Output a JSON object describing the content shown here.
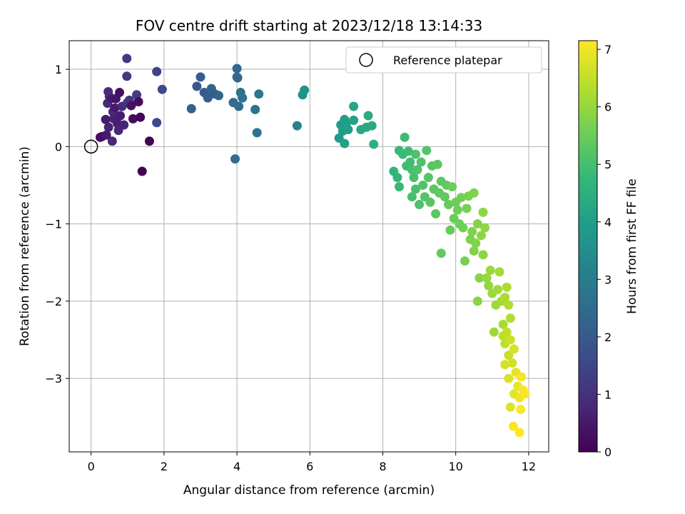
{
  "chart_data": {
    "type": "scatter",
    "title": "FOV centre drift starting at 2023/12/18 13:14:33",
    "xlabel": "Angular distance from reference (arcmin)",
    "ylabel": "Rotation from reference (arcmin)",
    "xlim": [
      -0.6,
      12.55
    ],
    "ylim": [
      -3.95,
      1.37
    ],
    "xticks": [
      0,
      2,
      4,
      6,
      8,
      10,
      12
    ],
    "yticks": [
      1,
      0,
      -1,
      -2,
      -3
    ],
    "xtick_labels": [
      "0",
      "2",
      "4",
      "6",
      "8",
      "10",
      "12"
    ],
    "ytick_labels": [
      "1",
      "0",
      "−1",
      "−2",
      "−3"
    ],
    "grid": true,
    "legend": {
      "position": "top-right",
      "label": "Reference platepar"
    },
    "reference_point": {
      "x": 0,
      "y": 0,
      "marker": "hollow-circle"
    },
    "colorbar": {
      "label": "Hours from first FF file",
      "colormap": "viridis",
      "range": [
        0,
        7.15
      ],
      "ticks": [
        0,
        1,
        2,
        3,
        4,
        5,
        6,
        7
      ],
      "tick_labels": [
        "0",
        "1",
        "2",
        "3",
        "4",
        "5",
        "6",
        "7"
      ]
    },
    "colors": {
      "viridis": [
        "#440154",
        "#482878",
        "#3e4989",
        "#31688e",
        "#26828e",
        "#1f9e89",
        "#35b779",
        "#6ece58",
        "#b5de2b",
        "#fde725"
      ]
    },
    "points": [
      {
        "x": 0.3,
        "y": 0.13,
        "t": 0.3
      },
      {
        "x": 0.4,
        "y": 0.35,
        "t": 0.5
      },
      {
        "x": 0.45,
        "y": 0.56,
        "t": 0.8
      },
      {
        "x": 0.47,
        "y": 0.71,
        "t": 0.9
      },
      {
        "x": 0.5,
        "y": 0.65,
        "t": 1.0
      },
      {
        "x": 0.48,
        "y": 0.25,
        "t": 0.7
      },
      {
        "x": 0.55,
        "y": 0.62,
        "t": 0.6
      },
      {
        "x": 0.6,
        "y": 0.45,
        "t": 0.9
      },
      {
        "x": 0.58,
        "y": 0.07,
        "t": 0.8
      },
      {
        "x": 0.62,
        "y": 0.36,
        "t": 0.7
      },
      {
        "x": 0.65,
        "y": 0.5,
        "t": 0.5
      },
      {
        "x": 0.68,
        "y": 0.62,
        "t": 0.4
      },
      {
        "x": 0.72,
        "y": 0.3,
        "t": 0.6
      },
      {
        "x": 0.75,
        "y": 0.21,
        "t": 0.8
      },
      {
        "x": 0.78,
        "y": 0.7,
        "t": 0.3
      },
      {
        "x": 0.8,
        "y": 0.4,
        "t": 0.6
      },
      {
        "x": 0.85,
        "y": 0.52,
        "t": 0.9
      },
      {
        "x": 0.9,
        "y": 0.28,
        "t": 0.7
      },
      {
        "x": 0.98,
        "y": 1.14,
        "t": 1.2
      },
      {
        "x": 0.98,
        "y": 0.91,
        "t": 1.2
      },
      {
        "x": 1.0,
        "y": 0.57,
        "t": 1.0
      },
      {
        "x": 1.05,
        "y": 0.6,
        "t": 1.1
      },
      {
        "x": 1.1,
        "y": 0.53,
        "t": 0.3
      },
      {
        "x": 1.15,
        "y": 0.36,
        "t": 0.2
      },
      {
        "x": 1.25,
        "y": 0.67,
        "t": 1.3
      },
      {
        "x": 1.3,
        "y": 0.58,
        "t": 0.2
      },
      {
        "x": 1.35,
        "y": 0.38,
        "t": 0.1
      },
      {
        "x": 1.4,
        "y": -0.32,
        "t": 0.0
      },
      {
        "x": 1.6,
        "y": 0.07,
        "t": 0.05
      },
      {
        "x": 1.8,
        "y": 0.97,
        "t": 1.4
      },
      {
        "x": 1.8,
        "y": 0.31,
        "t": 1.6
      },
      {
        "x": 1.95,
        "y": 0.74,
        "t": 1.6
      },
      {
        "x": 0.25,
        "y": 0.12,
        "t": 0.3
      },
      {
        "x": 0.42,
        "y": 0.15,
        "t": 0.5
      },
      {
        "x": 2.75,
        "y": 0.49,
        "t": 2.2
      },
      {
        "x": 2.9,
        "y": 0.78,
        "t": 2.0
      },
      {
        "x": 3.0,
        "y": 0.9,
        "t": 2.1
      },
      {
        "x": 3.1,
        "y": 0.7,
        "t": 2.0
      },
      {
        "x": 3.2,
        "y": 0.63,
        "t": 2.2
      },
      {
        "x": 3.25,
        "y": 0.67,
        "t": 2.1
      },
      {
        "x": 3.3,
        "y": 0.75,
        "t": 2.3
      },
      {
        "x": 3.4,
        "y": 0.68,
        "t": 2.1
      },
      {
        "x": 3.5,
        "y": 0.66,
        "t": 2.3
      },
      {
        "x": 3.9,
        "y": 0.57,
        "t": 2.5
      },
      {
        "x": 3.95,
        "y": -0.16,
        "t": 2.5
      },
      {
        "x": 4.0,
        "y": 1.01,
        "t": 2.4
      },
      {
        "x": 4.0,
        "y": 0.9,
        "t": 2.4
      },
      {
        "x": 4.02,
        "y": 0.89,
        "t": 2.4
      },
      {
        "x": 4.05,
        "y": 0.52,
        "t": 2.5
      },
      {
        "x": 4.1,
        "y": 0.7,
        "t": 2.6
      },
      {
        "x": 4.15,
        "y": 0.63,
        "t": 2.7
      },
      {
        "x": 4.5,
        "y": 0.48,
        "t": 2.7
      },
      {
        "x": 4.55,
        "y": 0.18,
        "t": 2.8
      },
      {
        "x": 4.6,
        "y": 0.68,
        "t": 2.8
      },
      {
        "x": 5.65,
        "y": 0.27,
        "t": 3.2
      },
      {
        "x": 5.8,
        "y": 0.67,
        "t": 3.6
      },
      {
        "x": 5.85,
        "y": 0.73,
        "t": 3.7
      },
      {
        "x": 6.8,
        "y": 0.11,
        "t": 3.9
      },
      {
        "x": 6.85,
        "y": 0.28,
        "t": 3.95
      },
      {
        "x": 6.9,
        "y": 0.2,
        "t": 4.0
      },
      {
        "x": 6.95,
        "y": 0.35,
        "t": 4.0
      },
      {
        "x": 6.95,
        "y": 0.04,
        "t": 4.1
      },
      {
        "x": 7.0,
        "y": 0.3,
        "t": 4.0
      },
      {
        "x": 7.05,
        "y": 0.22,
        "t": 4.05
      },
      {
        "x": 7.2,
        "y": 0.34,
        "t": 4.1
      },
      {
        "x": 7.2,
        "y": 0.52,
        "t": 4.2
      },
      {
        "x": 7.4,
        "y": 0.22,
        "t": 4.3
      },
      {
        "x": 7.55,
        "y": 0.25,
        "t": 4.3
      },
      {
        "x": 7.6,
        "y": 0.4,
        "t": 4.4
      },
      {
        "x": 7.7,
        "y": 0.27,
        "t": 4.4
      },
      {
        "x": 7.75,
        "y": 0.03,
        "t": 4.5
      },
      {
        "x": 8.3,
        "y": -0.32,
        "t": 4.7
      },
      {
        "x": 8.4,
        "y": -0.4,
        "t": 4.7
      },
      {
        "x": 8.45,
        "y": -0.05,
        "t": 4.8
      },
      {
        "x": 8.45,
        "y": -0.52,
        "t": 4.8
      },
      {
        "x": 8.55,
        "y": -0.1,
        "t": 4.85
      },
      {
        "x": 8.6,
        "y": 0.12,
        "t": 4.9
      },
      {
        "x": 8.65,
        "y": -0.25,
        "t": 4.9
      },
      {
        "x": 8.7,
        "y": -0.06,
        "t": 4.9
      },
      {
        "x": 8.75,
        "y": -0.2,
        "t": 4.95
      },
      {
        "x": 8.8,
        "y": -0.65,
        "t": 5.0
      },
      {
        "x": 8.8,
        "y": -0.3,
        "t": 5.0
      },
      {
        "x": 8.85,
        "y": -0.4,
        "t": 5.05
      },
      {
        "x": 8.9,
        "y": -0.55,
        "t": 5.05
      },
      {
        "x": 8.9,
        "y": -0.1,
        "t": 5.1
      },
      {
        "x": 8.95,
        "y": -0.3,
        "t": 5.1
      },
      {
        "x": 9.0,
        "y": -0.75,
        "t": 5.1
      },
      {
        "x": 9.05,
        "y": -0.2,
        "t": 5.15
      },
      {
        "x": 9.1,
        "y": -0.5,
        "t": 5.15
      },
      {
        "x": 9.15,
        "y": -0.65,
        "t": 5.2
      },
      {
        "x": 9.2,
        "y": -0.05,
        "t": 5.2
      },
      {
        "x": 9.25,
        "y": -0.4,
        "t": 5.2
      },
      {
        "x": 9.3,
        "y": -0.72,
        "t": 5.25
      },
      {
        "x": 9.35,
        "y": -0.25,
        "t": 5.25
      },
      {
        "x": 9.4,
        "y": -0.55,
        "t": 5.3
      },
      {
        "x": 9.45,
        "y": -0.87,
        "t": 5.3
      },
      {
        "x": 9.5,
        "y": -0.23,
        "t": 5.3
      },
      {
        "x": 9.55,
        "y": -0.6,
        "t": 5.35
      },
      {
        "x": 9.6,
        "y": -0.45,
        "t": 5.35
      },
      {
        "x": 9.6,
        "y": -1.38,
        "t": 5.4
      },
      {
        "x": 9.7,
        "y": -0.65,
        "t": 5.4
      },
      {
        "x": 9.75,
        "y": -0.5,
        "t": 5.4
      },
      {
        "x": 9.8,
        "y": -0.75,
        "t": 5.45
      },
      {
        "x": 9.85,
        "y": -1.08,
        "t": 5.45
      },
      {
        "x": 9.9,
        "y": -0.52,
        "t": 5.5
      },
      {
        "x": 9.95,
        "y": -0.93,
        "t": 5.5
      },
      {
        "x": 10.0,
        "y": -0.72,
        "t": 5.55
      },
      {
        "x": 10.05,
        "y": -0.82,
        "t": 5.55
      },
      {
        "x": 10.1,
        "y": -1.0,
        "t": 5.55
      },
      {
        "x": 10.15,
        "y": -0.66,
        "t": 5.6
      },
      {
        "x": 10.2,
        "y": -1.05,
        "t": 5.6
      },
      {
        "x": 10.25,
        "y": -1.48,
        "t": 5.65
      },
      {
        "x": 10.3,
        "y": -0.8,
        "t": 5.65
      },
      {
        "x": 10.35,
        "y": -0.64,
        "t": 5.7
      },
      {
        "x": 10.4,
        "y": -1.2,
        "t": 5.7
      },
      {
        "x": 10.45,
        "y": -1.1,
        "t": 5.75
      },
      {
        "x": 10.5,
        "y": -1.35,
        "t": 5.75
      },
      {
        "x": 10.5,
        "y": -0.6,
        "t": 5.75
      },
      {
        "x": 10.55,
        "y": -1.25,
        "t": 5.8
      },
      {
        "x": 10.6,
        "y": -1.0,
        "t": 5.8
      },
      {
        "x": 10.6,
        "y": -2.0,
        "t": 5.85
      },
      {
        "x": 10.65,
        "y": -1.7,
        "t": 5.85
      },
      {
        "x": 10.7,
        "y": -1.15,
        "t": 5.9
      },
      {
        "x": 10.75,
        "y": -1.4,
        "t": 5.9
      },
      {
        "x": 10.75,
        "y": -0.85,
        "t": 5.9
      },
      {
        "x": 10.8,
        "y": -1.05,
        "t": 5.95
      },
      {
        "x": 10.85,
        "y": -1.7,
        "t": 6.0
      },
      {
        "x": 10.9,
        "y": -1.8,
        "t": 6.0
      },
      {
        "x": 10.95,
        "y": -1.6,
        "t": 6.05
      },
      {
        "x": 11.0,
        "y": -1.9,
        "t": 6.05
      },
      {
        "x": 11.05,
        "y": -2.4,
        "t": 6.1
      },
      {
        "x": 11.1,
        "y": -2.05,
        "t": 6.1
      },
      {
        "x": 11.15,
        "y": -1.85,
        "t": 6.15
      },
      {
        "x": 11.2,
        "y": -1.62,
        "t": 6.15
      },
      {
        "x": 11.25,
        "y": -2.0,
        "t": 6.2
      },
      {
        "x": 11.3,
        "y": -2.3,
        "t": 6.2
      },
      {
        "x": 11.35,
        "y": -1.95,
        "t": 6.25
      },
      {
        "x": 11.4,
        "y": -1.82,
        "t": 6.25
      },
      {
        "x": 11.45,
        "y": -2.05,
        "t": 6.3
      },
      {
        "x": 11.5,
        "y": -2.22,
        "t": 6.3
      },
      {
        "x": 11.3,
        "y": -2.45,
        "t": 6.4
      },
      {
        "x": 11.35,
        "y": -2.55,
        "t": 6.45
      },
      {
        "x": 11.4,
        "y": -2.4,
        "t": 6.5
      },
      {
        "x": 11.45,
        "y": -2.7,
        "t": 6.55
      },
      {
        "x": 11.5,
        "y": -2.5,
        "t": 6.6
      },
      {
        "x": 11.55,
        "y": -2.8,
        "t": 6.65
      },
      {
        "x": 11.6,
        "y": -2.62,
        "t": 6.7
      },
      {
        "x": 11.35,
        "y": -2.82,
        "t": 6.7
      },
      {
        "x": 11.45,
        "y": -3.0,
        "t": 6.75
      },
      {
        "x": 11.5,
        "y": -3.37,
        "t": 6.8
      },
      {
        "x": 11.6,
        "y": -3.2,
        "t": 6.85
      },
      {
        "x": 11.65,
        "y": -2.92,
        "t": 6.9
      },
      {
        "x": 11.7,
        "y": -3.1,
        "t": 6.95
      },
      {
        "x": 11.75,
        "y": -3.25,
        "t": 7.0
      },
      {
        "x": 11.8,
        "y": -2.98,
        "t": 7.05
      },
      {
        "x": 11.85,
        "y": -3.15,
        "t": 7.1
      },
      {
        "x": 11.9,
        "y": -3.2,
        "t": 7.1
      },
      {
        "x": 11.58,
        "y": -3.62,
        "t": 7.1
      },
      {
        "x": 11.78,
        "y": -3.4,
        "t": 7.12
      },
      {
        "x": 11.75,
        "y": -3.7,
        "t": 7.15
      }
    ]
  }
}
